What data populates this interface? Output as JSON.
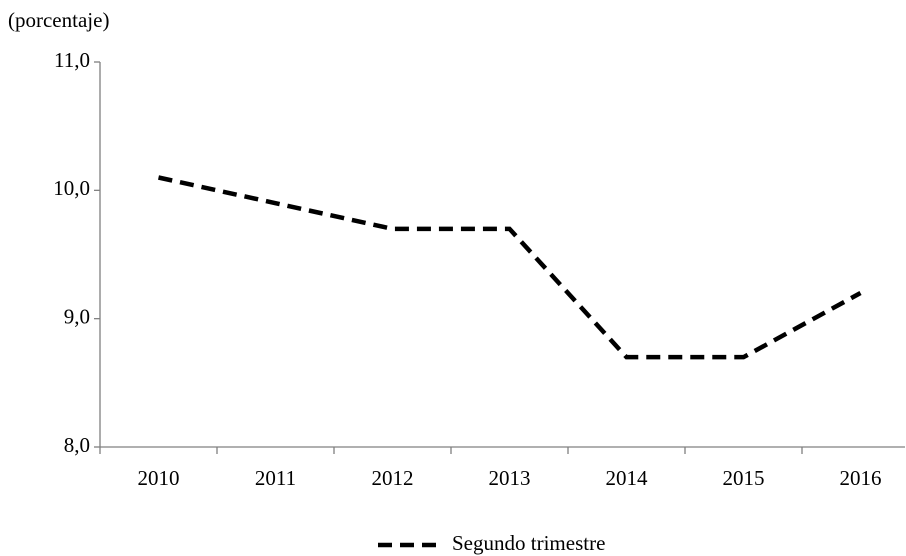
{
  "chart_data": {
    "type": "line",
    "y_label": "(porcentaje)",
    "categories": [
      "2010",
      "2011",
      "2012",
      "2013",
      "2014",
      "2015",
      "2016"
    ],
    "series": [
      {
        "name": "Segundo trimestre",
        "color": "#000000",
        "line_style": "dashed",
        "values": [
          10.1,
          9.9,
          9.7,
          9.7,
          8.7,
          8.7,
          9.2
        ]
      }
    ],
    "ylim": [
      8,
      11
    ],
    "yticks": [
      {
        "value": 8,
        "label": "8,0"
      },
      {
        "value": 9,
        "label": "9,0"
      },
      {
        "value": 10,
        "label": "10,0"
      },
      {
        "value": 11,
        "label": "11,0"
      }
    ],
    "grid": false,
    "legend": "bottom"
  }
}
